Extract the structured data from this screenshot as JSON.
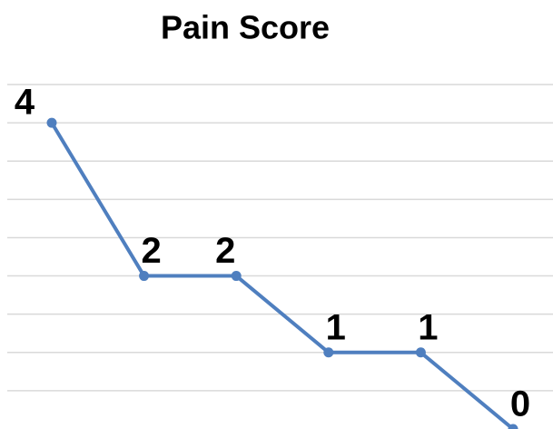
{
  "chart_data": {
    "type": "line",
    "title": "Pain Score",
    "values": [
      4,
      2,
      2,
      1,
      1,
      0
    ],
    "value_labels": [
      "4",
      "2",
      "2",
      "1",
      "1",
      "0"
    ],
    "color": "#4f7fbf",
    "ylim": [
      0,
      4.5
    ],
    "yticks": [
      0.5,
      1,
      1.5,
      2,
      2.5,
      3,
      3.5,
      4,
      4.5
    ],
    "grid": true
  }
}
